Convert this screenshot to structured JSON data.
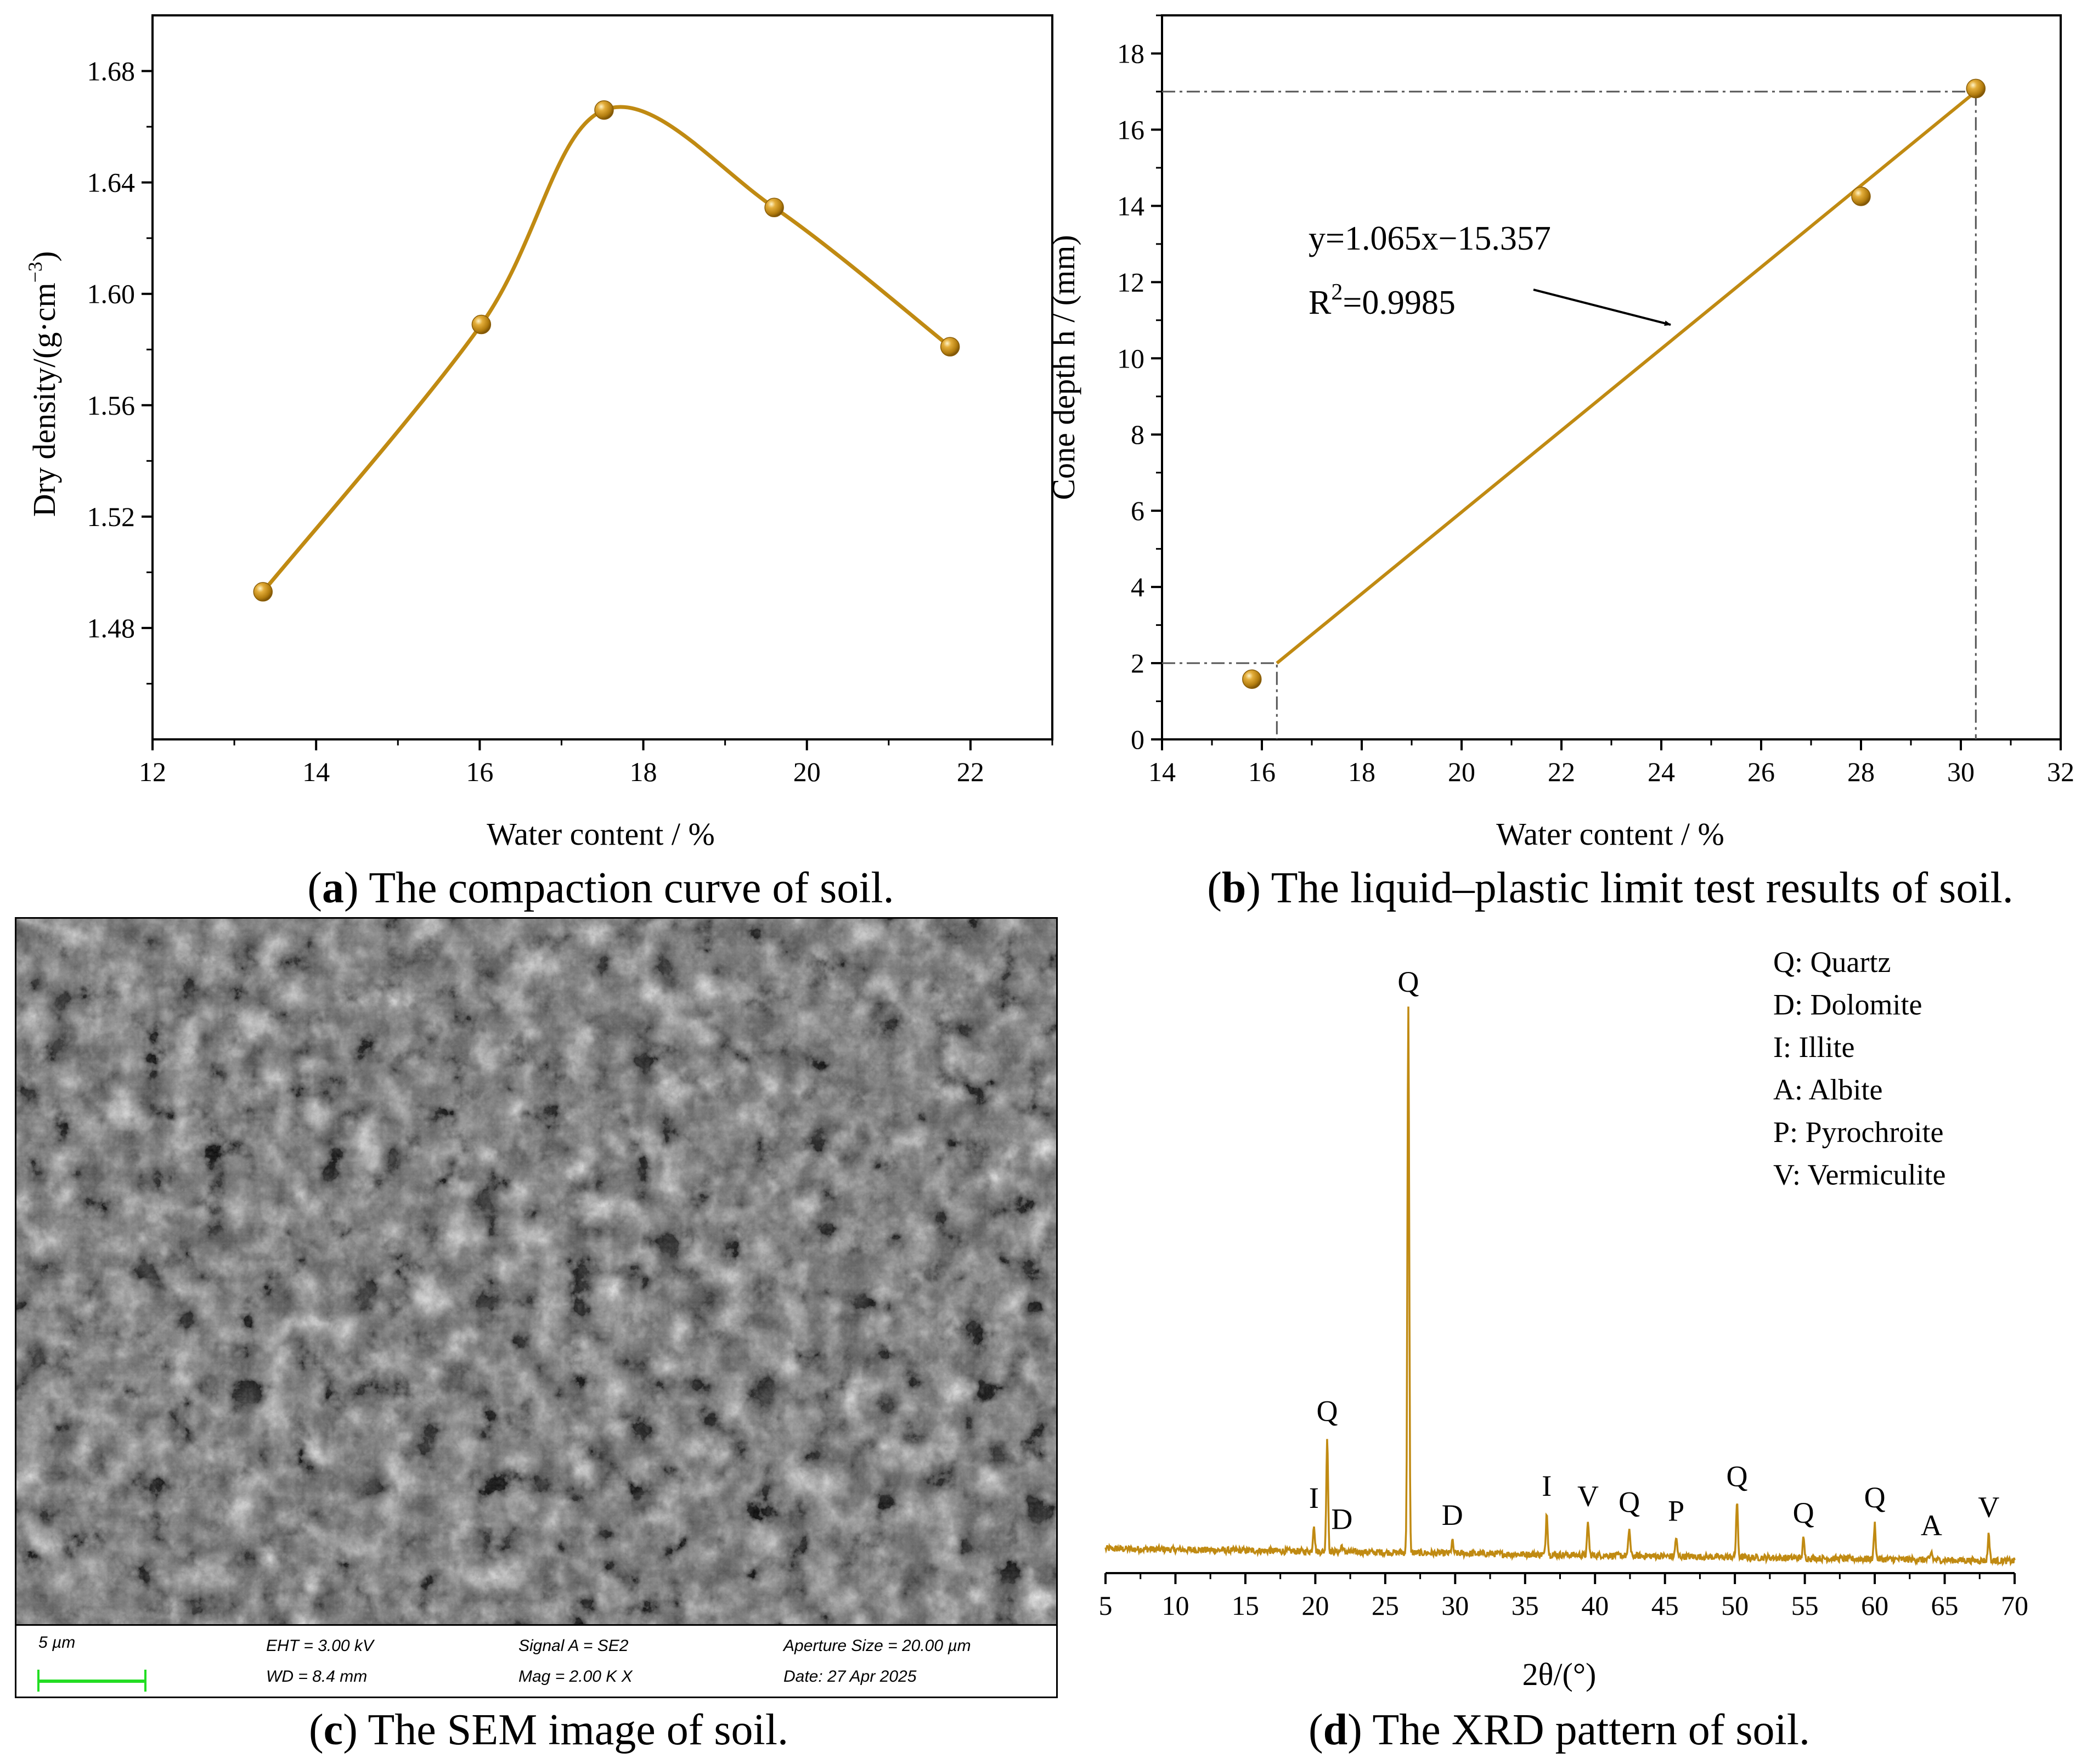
{
  "panels": [
    {
      "id": "a",
      "caption_letter": "a",
      "caption_text": "The compaction curve of soil.",
      "chart_data": {
        "type": "line",
        "title": "",
        "xlabel": "Water content / %",
        "ylabel": "Dry density/(g·cm−3)",
        "xlim": [
          12,
          23
        ],
        "ylim": [
          1.44,
          1.7
        ],
        "xticks": [
          "12",
          "14",
          "16",
          "18",
          "20",
          "22"
        ],
        "yticks": [
          "1.48",
          "1.52",
          "1.56",
          "1.60",
          "1.64",
          "1.68"
        ],
        "series": [
          {
            "x": [
              13.35,
              16.02,
              17.52,
              19.6,
              21.75
            ],
            "y": [
              1.493,
              1.589,
              1.666,
              1.631,
              1.581
            ]
          }
        ],
        "smooth_curve": true,
        "color": "#c08a12"
      }
    },
    {
      "id": "b",
      "caption_letter": "b",
      "caption_text": "The liquid–plastic limit test results of soil.",
      "chart_data": {
        "type": "scatter",
        "title": "",
        "xlabel": "Water content / %",
        "ylabel": "Cone depth h / (mm)",
        "xlim": [
          14,
          32
        ],
        "ylim": [
          0,
          19
        ],
        "xticks": [
          "14",
          "16",
          "18",
          "20",
          "22",
          "24",
          "26",
          "28",
          "30",
          "32"
        ],
        "yticks": [
          "0",
          "2",
          "4",
          "6",
          "8",
          "10",
          "12",
          "14",
          "16",
          "18"
        ],
        "series": [
          {
            "x": [
              15.8,
              28.0,
              30.3
            ],
            "y": [
              1.58,
              14.25,
              17.08
            ]
          }
        ],
        "fit_line": {
          "x": [
            16.3,
            30.3
          ],
          "y": [
            2.0,
            17.0
          ]
        },
        "reference_lines": [
          {
            "y": 2,
            "x": 16.3
          },
          {
            "y": 17,
            "x": 30.3
          }
        ],
        "annotation_equation": "y=1.065x−15.357",
        "annotation_r2_prefix": "R",
        "annotation_r2_sup": "2",
        "annotation_r2_value": "=0.9985",
        "color": "#c08a12"
      }
    },
    {
      "id": "c",
      "caption_letter": "c",
      "caption_text": "The SEM image of soil.",
      "sem_databar": {
        "scale": "5 µm",
        "eht": "EHT =  3.00 kV",
        "wd": "WD =  8.4 mm",
        "signal": "Signal A = SE2",
        "mag": "Mag =    2.00 K X",
        "aperture": "Aperture Size = 20.00 µm",
        "date": "Date: 27 Apr 2025"
      }
    },
    {
      "id": "d",
      "caption_letter": "d",
      "caption_text": "The XRD pattern of soil.",
      "chart_data": {
        "type": "line",
        "title": "",
        "xlabel": "2θ/(°)",
        "ylabel": "",
        "xlim": [
          5,
          70
        ],
        "xticks": [
          "5",
          "10",
          "15",
          "20",
          "25",
          "30",
          "35",
          "40",
          "45",
          "50",
          "55",
          "60",
          "65",
          "70"
        ],
        "baseline": 0.045,
        "peaks": [
          {
            "x": 19.9,
            "h": 0.05,
            "label": "I"
          },
          {
            "x": 20.85,
            "h": 0.21,
            "label": "Q"
          },
          {
            "x": 21.9,
            "h": 0.012,
            "label": "D"
          },
          {
            "x": 26.65,
            "h": 1.0,
            "label": "Q"
          },
          {
            "x": 29.8,
            "h": 0.022,
            "label": "D"
          },
          {
            "x": 36.55,
            "h": 0.078,
            "label": "I"
          },
          {
            "x": 39.5,
            "h": 0.06,
            "label": "V"
          },
          {
            "x": 42.45,
            "h": 0.05,
            "label": "Q"
          },
          {
            "x": 45.8,
            "h": 0.035,
            "label": "P"
          },
          {
            "x": 50.15,
            "h": 0.1,
            "label": "Q"
          },
          {
            "x": 54.9,
            "h": 0.035,
            "label": "Q"
          },
          {
            "x": 60.0,
            "h": 0.065,
            "label": "Q"
          },
          {
            "x": 64.05,
            "h": 0.015,
            "label": "A"
          },
          {
            "x": 68.15,
            "h": 0.05,
            "label": "V"
          }
        ],
        "legend": [
          "Q: Quartz",
          "D: Dolomite",
          " I:  Illite",
          "A: Albite",
          "P: Pyrochroite",
          "V: Vermiculite"
        ],
        "color": "#c08a12"
      }
    }
  ]
}
